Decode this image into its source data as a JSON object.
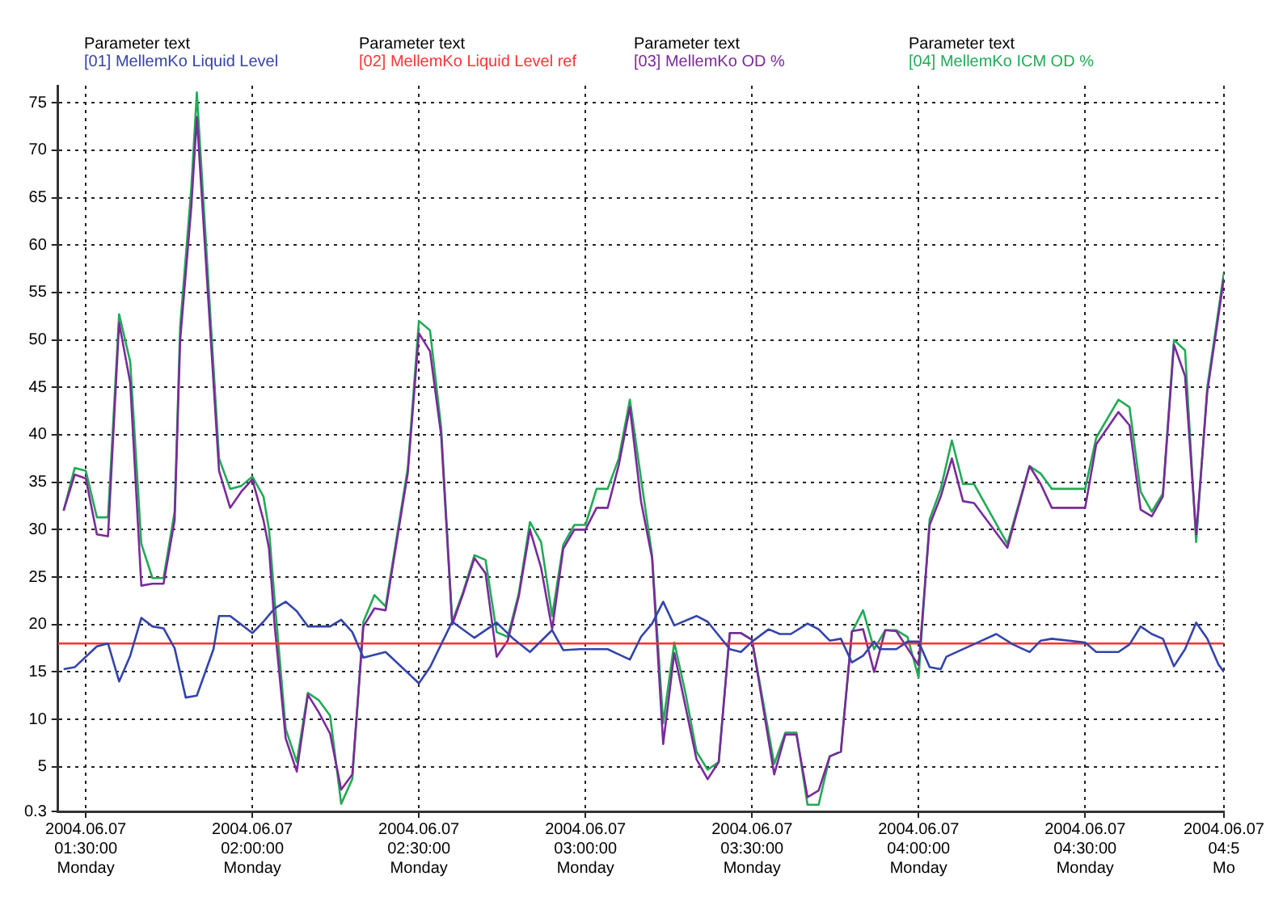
{
  "chart_data": {
    "type": "line",
    "legend_title": "Parameter text",
    "legend": "top",
    "grid": true,
    "marker": "none",
    "line_style": "solid",
    "xlim": [
      "2004-06-07T01:25",
      "2004-06-07T04:55"
    ],
    "xticks": [
      {
        "value": "2004-06-07T01:30",
        "label": "2004.06.07\n01:30:00\nMonday"
      },
      {
        "value": "2004-06-07T02:00",
        "label": "2004.06.07\n02:00:00\nMonday"
      },
      {
        "value": "2004-06-07T02:30",
        "label": "2004.06.07\n02:30:00\nMonday"
      },
      {
        "value": "2004-06-07T03:00",
        "label": "2004.06.07\n03:00:00\nMonday"
      },
      {
        "value": "2004-06-07T03:30",
        "label": "2004.06.07\n03:30:00\nMonday"
      },
      {
        "value": "2004-06-07T04:00",
        "label": "2004.06.07\n04:00:00\nMonday"
      },
      {
        "value": "2004-06-07T04:30",
        "label": "2004.06.07\n04:30:00\nMonday"
      },
      {
        "value": "2004-06-07T04:55",
        "label": "2004.06.07\n04:5\nMo"
      }
    ],
    "ylim": [
      0.3,
      76.8
    ],
    "yticks": [
      0.3,
      5,
      10,
      15,
      20,
      25,
      30,
      35,
      40,
      45,
      50,
      55,
      60,
      65,
      70,
      75
    ],
    "series": [
      {
        "name": "[01]  MellemKo Liquid Level",
        "color": "#3344aa",
        "x": [
          "2004-06-07T01:26",
          "2004-06-07T01:28",
          "2004-06-07T01:32",
          "2004-06-07T01:34",
          "2004-06-07T01:36",
          "2004-06-07T01:38",
          "2004-06-07T01:40",
          "2004-06-07T01:42",
          "2004-06-07T01:44",
          "2004-06-07T01:46",
          "2004-06-07T01:48",
          "2004-06-07T01:50",
          "2004-06-07T01:53",
          "2004-06-07T01:54",
          "2004-06-07T01:56",
          "2004-06-07T02:00",
          "2004-06-07T02:02",
          "2004-06-07T02:04",
          "2004-06-07T02:06",
          "2004-06-07T02:08",
          "2004-06-07T02:10",
          "2004-06-07T02:14",
          "2004-06-07T02:16",
          "2004-06-07T02:18",
          "2004-06-07T02:20",
          "2004-06-07T02:22",
          "2004-06-07T02:24",
          "2004-06-07T02:30",
          "2004-06-07T02:32",
          "2004-06-07T02:36",
          "2004-06-07T02:40",
          "2004-06-07T02:44",
          "2004-06-07T02:47",
          "2004-06-07T02:50",
          "2004-06-07T02:54",
          "2004-06-07T02:56",
          "2004-06-07T02:59",
          "2004-06-07T03:04",
          "2004-06-07T03:08",
          "2004-06-07T03:10",
          "2004-06-07T03:12",
          "2004-06-07T03:14",
          "2004-06-07T03:16",
          "2004-06-07T03:20",
          "2004-06-07T03:22",
          "2004-06-07T03:26",
          "2004-06-07T03:28",
          "2004-06-07T03:30",
          "2004-06-07T03:33",
          "2004-06-07T03:35",
          "2004-06-07T03:37",
          "2004-06-07T03:40",
          "2004-06-07T03:42",
          "2004-06-07T03:44",
          "2004-06-07T03:46",
          "2004-06-07T03:48",
          "2004-06-07T03:50",
          "2004-06-07T03:52",
          "2004-06-07T03:53",
          "2004-06-07T03:56",
          "2004-06-07T03:58",
          "2004-06-07T04:00",
          "2004-06-07T04:02",
          "2004-06-07T04:04",
          "2004-06-07T04:05",
          "2004-06-07T04:11",
          "2004-06-07T04:14",
          "2004-06-07T04:17",
          "2004-06-07T04:20",
          "2004-06-07T04:22",
          "2004-06-07T04:24",
          "2004-06-07T04:30",
          "2004-06-07T04:32",
          "2004-06-07T04:36",
          "2004-06-07T04:38",
          "2004-06-07T04:40",
          "2004-06-07T04:42",
          "2004-06-07T04:44",
          "2004-06-07T04:46",
          "2004-06-07T04:48",
          "2004-06-07T04:50",
          "2004-06-07T04:52",
          "2004-06-07T04:54",
          "2004-06-07T04:55"
        ],
        "values": [
          15.3,
          15.5,
          17.7,
          18,
          14,
          16.7,
          20.7,
          19.8,
          19.6,
          17.5,
          12.3,
          12.5,
          17.4,
          20.9,
          20.9,
          19.1,
          20.3,
          21.7,
          22.4,
          21.4,
          19.8,
          19.8,
          20.5,
          19.2,
          16.5,
          16.8,
          17.1,
          13.8,
          15.5,
          20.3,
          18.6,
          20.2,
          18.5,
          17.1,
          19.4,
          17.3,
          17.4,
          17.4,
          16.3,
          18.7,
          20.1,
          22.4,
          19.9,
          20.9,
          20.3,
          17.4,
          17.1,
          18.2,
          19.5,
          19,
          19,
          20.1,
          19.5,
          18.3,
          18.5,
          16,
          16.7,
          18.2,
          17.4,
          17.4,
          18.2,
          18.2,
          15.5,
          15.3,
          16.6,
          18.2,
          19,
          17.9,
          17.1,
          18.3,
          18.5,
          18.1,
          17.1,
          17.1,
          17.9,
          19.8,
          19,
          18.5,
          15.6,
          17.4,
          20.2,
          18.5,
          15.8,
          15
        ]
      },
      {
        "name": "[02]  MellemKo Liquid Level ref",
        "color": "#ff3333",
        "x": [
          "2004-06-07T01:25",
          "2004-06-07T04:55"
        ],
        "values": [
          18,
          18
        ]
      },
      {
        "name": "[03]  MellemKo OD %",
        "color": "#7a2a9a",
        "x": [
          "2004-06-07T01:26",
          "2004-06-07T01:28",
          "2004-06-07T01:30",
          "2004-06-07T01:32",
          "2004-06-07T01:34",
          "2004-06-07T01:36",
          "2004-06-07T01:38",
          "2004-06-07T01:40",
          "2004-06-07T01:42",
          "2004-06-07T01:44",
          "2004-06-07T01:46",
          "2004-06-07T01:47",
          "2004-06-07T01:49",
          "2004-06-07T01:50",
          "2004-06-07T01:54",
          "2004-06-07T01:56",
          "2004-06-07T01:58",
          "2004-06-07T02:00",
          "2004-06-07T02:02",
          "2004-06-07T02:03",
          "2004-06-07T02:04",
          "2004-06-07T02:06",
          "2004-06-07T02:08",
          "2004-06-07T02:10",
          "2004-06-07T02:12",
          "2004-06-07T02:14",
          "2004-06-07T02:16",
          "2004-06-07T02:18",
          "2004-06-07T02:20",
          "2004-06-07T02:22",
          "2004-06-07T02:24",
          "2004-06-07T02:28",
          "2004-06-07T02:30",
          "2004-06-07T02:32",
          "2004-06-07T02:34",
          "2004-06-07T02:36",
          "2004-06-07T02:38",
          "2004-06-07T02:40",
          "2004-06-07T02:42",
          "2004-06-07T02:44",
          "2004-06-07T02:46",
          "2004-06-07T02:48",
          "2004-06-07T02:50",
          "2004-06-07T02:52",
          "2004-06-07T02:54",
          "2004-06-07T02:56",
          "2004-06-07T02:58",
          "2004-06-07T03:00",
          "2004-06-07T03:02",
          "2004-06-07T03:04",
          "2004-06-07T03:06",
          "2004-06-07T03:08",
          "2004-06-07T03:10",
          "2004-06-07T03:12",
          "2004-06-07T03:14",
          "2004-06-07T03:16",
          "2004-06-07T03:18",
          "2004-06-07T03:20",
          "2004-06-07T03:22",
          "2004-06-07T03:24",
          "2004-06-07T03:26",
          "2004-06-07T03:28",
          "2004-06-07T03:30",
          "2004-06-07T03:34",
          "2004-06-07T03:36",
          "2004-06-07T03:38",
          "2004-06-07T03:40",
          "2004-06-07T03:42",
          "2004-06-07T03:44",
          "2004-06-07T03:46",
          "2004-06-07T03:48",
          "2004-06-07T03:50",
          "2004-06-07T03:52",
          "2004-06-07T03:54",
          "2004-06-07T03:56",
          "2004-06-07T03:58",
          "2004-06-07T04:00",
          "2004-06-07T04:02",
          "2004-06-07T04:04",
          "2004-06-07T04:06",
          "2004-06-07T04:08",
          "2004-06-07T04:10",
          "2004-06-07T04:16",
          "2004-06-07T04:20",
          "2004-06-07T04:22",
          "2004-06-07T04:24",
          "2004-06-07T04:30",
          "2004-06-07T04:32",
          "2004-06-07T04:36",
          "2004-06-07T04:38",
          "2004-06-07T04:40",
          "2004-06-07T04:42",
          "2004-06-07T04:44",
          "2004-06-07T04:46",
          "2004-06-07T04:48",
          "2004-06-07T04:50",
          "2004-06-07T04:52",
          "2004-06-07T04:55"
        ],
        "values": [
          32.0,
          35.8,
          35.4,
          29.5,
          29.3,
          51.8,
          45.5,
          24.1,
          24.3,
          24.3,
          31.0,
          50.0,
          64.0,
          73.5,
          36.2,
          32.3,
          34.0,
          35.3,
          31.0,
          28.0,
          20.0,
          8.0,
          4.5,
          12.6,
          10.7,
          8.5,
          2.6,
          4.2,
          19.8,
          21.7,
          21.5,
          36.0,
          50.7,
          48.8,
          40.0,
          20.0,
          23.3,
          27.0,
          25.4,
          16.6,
          18.3,
          23.0,
          30.0,
          26.0,
          19.5,
          28.0,
          30.0,
          30.0,
          32.3,
          32.3,
          36.8,
          42.9,
          33.0,
          27.0,
          7.4,
          17.0,
          11.4,
          5.8,
          3.7,
          5.5,
          19.1,
          19.1,
          18.4,
          4.2,
          8.4,
          8.4,
          1.8,
          2.5,
          6.1,
          6.6,
          19.3,
          19.5,
          15.0,
          19.4,
          19.3,
          17.5,
          15.7,
          30.5,
          33.5,
          37.5,
          33.0,
          32.8,
          28.1,
          36.7,
          34.8,
          32.3,
          32.3,
          39.0,
          42.4,
          41.0,
          32.1,
          31.4,
          33.5,
          49.5,
          46.2,
          29.5,
          44.5,
          56.5
        ]
      },
      {
        "name": "[04]  MellemKo ICM OD %",
        "color": "#22aa55",
        "x": [
          "2004-06-07T01:26",
          "2004-06-07T01:28",
          "2004-06-07T01:30",
          "2004-06-07T01:32",
          "2004-06-07T01:34",
          "2004-06-07T01:36",
          "2004-06-07T01:38",
          "2004-06-07T01:40",
          "2004-06-07T01:42",
          "2004-06-07T01:44",
          "2004-06-07T01:46",
          "2004-06-07T01:47",
          "2004-06-07T01:49",
          "2004-06-07T01:50",
          "2004-06-07T01:54",
          "2004-06-07T01:56",
          "2004-06-07T01:58",
          "2004-06-07T02:00",
          "2004-06-07T02:02",
          "2004-06-07T02:03",
          "2004-06-07T02:04",
          "2004-06-07T02:06",
          "2004-06-07T02:08",
          "2004-06-07T02:10",
          "2004-06-07T02:12",
          "2004-06-07T02:14",
          "2004-06-07T02:16",
          "2004-06-07T02:18",
          "2004-06-07T02:20",
          "2004-06-07T02:22",
          "2004-06-07T02:24",
          "2004-06-07T02:28",
          "2004-06-07T02:30",
          "2004-06-07T02:32",
          "2004-06-07T02:34",
          "2004-06-07T02:36",
          "2004-06-07T02:38",
          "2004-06-07T02:40",
          "2004-06-07T02:42",
          "2004-06-07T02:44",
          "2004-06-07T02:46",
          "2004-06-07T02:48",
          "2004-06-07T02:50",
          "2004-06-07T02:52",
          "2004-06-07T02:54",
          "2004-06-07T02:56",
          "2004-06-07T02:58",
          "2004-06-07T03:00",
          "2004-06-07T03:02",
          "2004-06-07T03:04",
          "2004-06-07T03:06",
          "2004-06-07T03:08",
          "2004-06-07T03:10",
          "2004-06-07T03:12",
          "2004-06-07T03:14",
          "2004-06-07T03:16",
          "2004-06-07T03:18",
          "2004-06-07T03:20",
          "2004-06-07T03:22",
          "2004-06-07T03:24",
          "2004-06-07T03:26",
          "2004-06-07T03:28",
          "2004-06-07T03:30",
          "2004-06-07T03:34",
          "2004-06-07T03:36",
          "2004-06-07T03:38",
          "2004-06-07T03:40",
          "2004-06-07T03:42",
          "2004-06-07T03:44",
          "2004-06-07T03:46",
          "2004-06-07T03:48",
          "2004-06-07T03:50",
          "2004-06-07T03:52",
          "2004-06-07T03:54",
          "2004-06-07T03:56",
          "2004-06-07T03:58",
          "2004-06-07T04:00",
          "2004-06-07T04:02",
          "2004-06-07T04:04",
          "2004-06-07T04:06",
          "2004-06-07T04:08",
          "2004-06-07T04:10",
          "2004-06-07T04:16",
          "2004-06-07T04:20",
          "2004-06-07T04:22",
          "2004-06-07T04:24",
          "2004-06-07T04:30",
          "2004-06-07T04:32",
          "2004-06-07T04:36",
          "2004-06-07T04:38",
          "2004-06-07T04:40",
          "2004-06-07T04:42",
          "2004-06-07T04:44",
          "2004-06-07T04:46",
          "2004-06-07T04:48",
          "2004-06-07T04:50",
          "2004-06-07T04:52",
          "2004-06-07T04:55"
        ],
        "values": [
          32.0,
          36.5,
          36.2,
          31.3,
          31.3,
          52.7,
          47.7,
          28.5,
          24.9,
          24.9,
          31.9,
          51.5,
          66.0,
          76.1,
          37.5,
          34.3,
          34.6,
          35.6,
          33.5,
          30.0,
          22.7,
          9.0,
          5.5,
          12.8,
          12.0,
          10.4,
          1.1,
          3.7,
          20.3,
          23.1,
          21.9,
          36.5,
          52.0,
          51.0,
          40.8,
          20.3,
          23.5,
          27.3,
          26.8,
          19.2,
          18.7,
          23.3,
          30.8,
          28.7,
          20.9,
          28.4,
          30.5,
          30.5,
          34.3,
          34.3,
          37.5,
          43.7,
          35.4,
          27.3,
          9.6,
          18.1,
          12.8,
          6.6,
          4.7,
          5.5,
          19.1,
          19.1,
          18.4,
          5.3,
          8.6,
          8.6,
          1.0,
          1.0,
          6.1,
          6.6,
          19.2,
          21.5,
          17.4,
          19.4,
          19.4,
          18.7,
          14.4,
          31.1,
          34.3,
          39.4,
          34.8,
          34.8,
          28.5,
          36.7,
          35.9,
          34.3,
          34.3,
          39.7,
          43.7,
          42.9,
          34.0,
          31.9,
          33.8,
          50.0,
          48.9,
          28.7,
          45.0,
          57.1
        ]
      }
    ]
  }
}
